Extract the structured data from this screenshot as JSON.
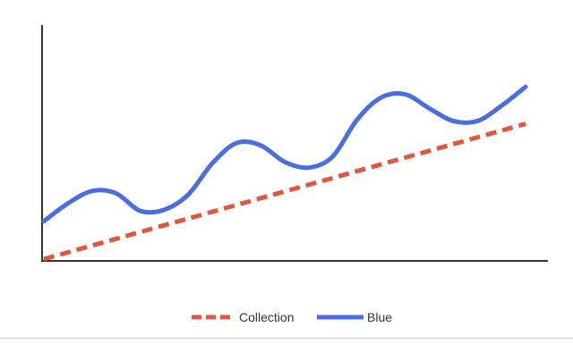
{
  "chart_data": {
    "type": "line",
    "title": "",
    "xlabel": "",
    "ylabel": "",
    "x": [
      0,
      0.5,
      1,
      1.5,
      2,
      2.5,
      3,
      3.5,
      4,
      4.5,
      5,
      5.5,
      6,
      6.5,
      7,
      7.5,
      8,
      8.5,
      9,
      9.5,
      10
    ],
    "xlim": [
      0,
      10
    ],
    "ylim": [
      0,
      10
    ],
    "grid": false,
    "axes": "left-bottom",
    "legend_position": "bottom-center",
    "series": [
      {
        "name": "Collection",
        "style": "dashed",
        "color": "#e2553e",
        "values": [
          0.0,
          0.29,
          0.58,
          0.87,
          1.15,
          1.44,
          1.73,
          2.02,
          2.31,
          2.6,
          2.89,
          3.18,
          3.46,
          3.75,
          4.04,
          4.33,
          4.62,
          4.91,
          5.2,
          5.49,
          5.78
        ]
      },
      {
        "name": "Blue",
        "style": "solid",
        "color": "#4a6de0",
        "values": [
          1.62,
          2.38,
          2.91,
          2.81,
          2.06,
          2.11,
          2.76,
          4.1,
          4.96,
          4.86,
          4.15,
          3.91,
          4.39,
          5.95,
          6.9,
          7.04,
          6.44,
          5.9,
          5.9,
          6.55,
          7.36
        ]
      }
    ]
  }
}
